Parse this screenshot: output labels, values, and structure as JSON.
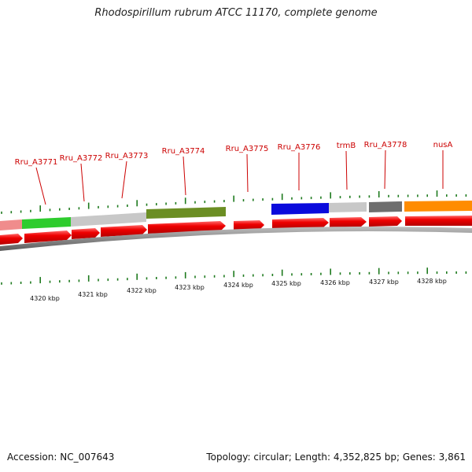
{
  "title": "Rhodospirillum rubrum ATCC 11170, complete genome",
  "footer": {
    "accession": "Accession: NC_007643",
    "stats": "Topology: circular; Length: 4,352,825 bp; Genes: 3,861"
  },
  "gene_labels": [
    {
      "id": "rru-a3771",
      "text": "Rru_A3771"
    },
    {
      "id": "rru-a3772",
      "text": "Rru_A3772"
    },
    {
      "id": "rru-a3773",
      "text": "Rru_A3773"
    },
    {
      "id": "rru-a3774",
      "text": "Rru_A3774"
    },
    {
      "id": "rru-a3775",
      "text": "Rru_A3775"
    },
    {
      "id": "rru-a3776",
      "text": "Rru_A3776"
    },
    {
      "id": "trmb",
      "text": "trmB"
    },
    {
      "id": "rru-a3778",
      "text": "Rru_A3778"
    },
    {
      "id": "nusa",
      "text": "nusA"
    }
  ],
  "kbp_labels": [
    "4320 kbp",
    "4321 kbp",
    "4322 kbp",
    "4323 kbp",
    "4324 kbp",
    "4325 kbp",
    "4326 kbp",
    "4327 kbp",
    "4328 kbp"
  ],
  "colors": {
    "gene_label": "#cc0000",
    "tick": "#1e7a1e",
    "feature_arrow": "#ee0000",
    "backbone": "#808080"
  },
  "cog_segments": [
    {
      "color": "#f08c8c"
    },
    {
      "color": "#2ecc2e"
    },
    {
      "color": "#c8c8c8"
    },
    {
      "color": "#6b8e23"
    },
    {
      "color": "#0a0adc"
    },
    {
      "color": "#c8c8c8"
    },
    {
      "color": "#6e6e6e"
    },
    {
      "color": "#ff8c00"
    }
  ]
}
